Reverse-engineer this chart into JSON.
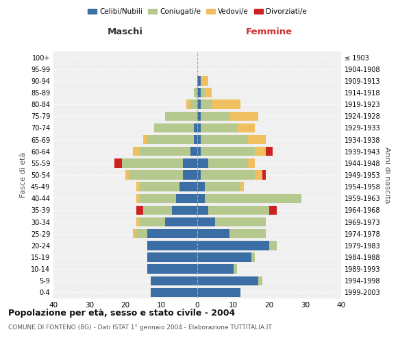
{
  "age_groups": [
    "0-4",
    "5-9",
    "10-14",
    "15-19",
    "20-24",
    "25-29",
    "30-34",
    "35-39",
    "40-44",
    "45-49",
    "50-54",
    "55-59",
    "60-64",
    "65-69",
    "70-74",
    "75-79",
    "80-84",
    "85-89",
    "90-94",
    "95-99",
    "100+"
  ],
  "birth_years": [
    "1999-2003",
    "1994-1998",
    "1989-1993",
    "1984-1988",
    "1979-1983",
    "1974-1978",
    "1969-1973",
    "1964-1968",
    "1959-1963",
    "1954-1958",
    "1949-1953",
    "1944-1948",
    "1939-1943",
    "1934-1938",
    "1929-1933",
    "1924-1928",
    "1919-1923",
    "1914-1918",
    "1909-1913",
    "1904-1908",
    "≤ 1903"
  ],
  "maschi": {
    "celibi": [
      13,
      13,
      14,
      14,
      14,
      14,
      9,
      7,
      6,
      5,
      4,
      4,
      2,
      1,
      1,
      0,
      0,
      0,
      0,
      0,
      0
    ],
    "coniugati": [
      0,
      0,
      0,
      0,
      0,
      3,
      7,
      8,
      10,
      11,
      15,
      17,
      14,
      13,
      11,
      9,
      2,
      1,
      0,
      0,
      0
    ],
    "vedovi": [
      0,
      0,
      0,
      0,
      0,
      1,
      1,
      0,
      1,
      1,
      1,
      0,
      2,
      1,
      0,
      0,
      1,
      0,
      0,
      0,
      0
    ],
    "divorziati": [
      0,
      0,
      0,
      0,
      0,
      0,
      0,
      2,
      0,
      0,
      0,
      2,
      0,
      0,
      0,
      0,
      0,
      0,
      0,
      0,
      0
    ]
  },
  "femmine": {
    "nubili": [
      12,
      17,
      10,
      15,
      20,
      9,
      5,
      3,
      2,
      2,
      1,
      3,
      1,
      1,
      1,
      1,
      1,
      1,
      1,
      0,
      0
    ],
    "coniugate": [
      0,
      1,
      1,
      1,
      2,
      10,
      14,
      17,
      27,
      10,
      15,
      11,
      15,
      13,
      10,
      8,
      3,
      1,
      0,
      0,
      0
    ],
    "vedove": [
      0,
      0,
      0,
      0,
      0,
      0,
      0,
      0,
      0,
      1,
      2,
      2,
      3,
      5,
      5,
      8,
      8,
      2,
      2,
      0,
      0
    ],
    "divorziate": [
      0,
      0,
      0,
      0,
      0,
      0,
      0,
      2,
      0,
      0,
      1,
      0,
      2,
      0,
      0,
      0,
      0,
      0,
      0,
      0,
      0
    ]
  },
  "colors": {
    "celibi_nubili": "#3a6ea5",
    "coniugati": "#b5c98e",
    "vedovi": "#f0c060",
    "divorziati": "#cc2222"
  },
  "xlim": 40,
  "title": "Popolazione per età, sesso e stato civile - 2004",
  "subtitle": "COMUNE DI FONTENO (BG) - Dati ISTAT 1° gennaio 2004 - Elaborazione TUTTITALIA.IT",
  "xlabel_left": "Maschi",
  "xlabel_right": "Femmine",
  "ylabel_left": "Fasce di età",
  "ylabel_right": "Anni di nascita",
  "legend_labels": [
    "Celibi/Nubili",
    "Coniugati/e",
    "Vedovi/e",
    "Divorziati/e"
  ],
  "background_color": "#f0f0f0"
}
